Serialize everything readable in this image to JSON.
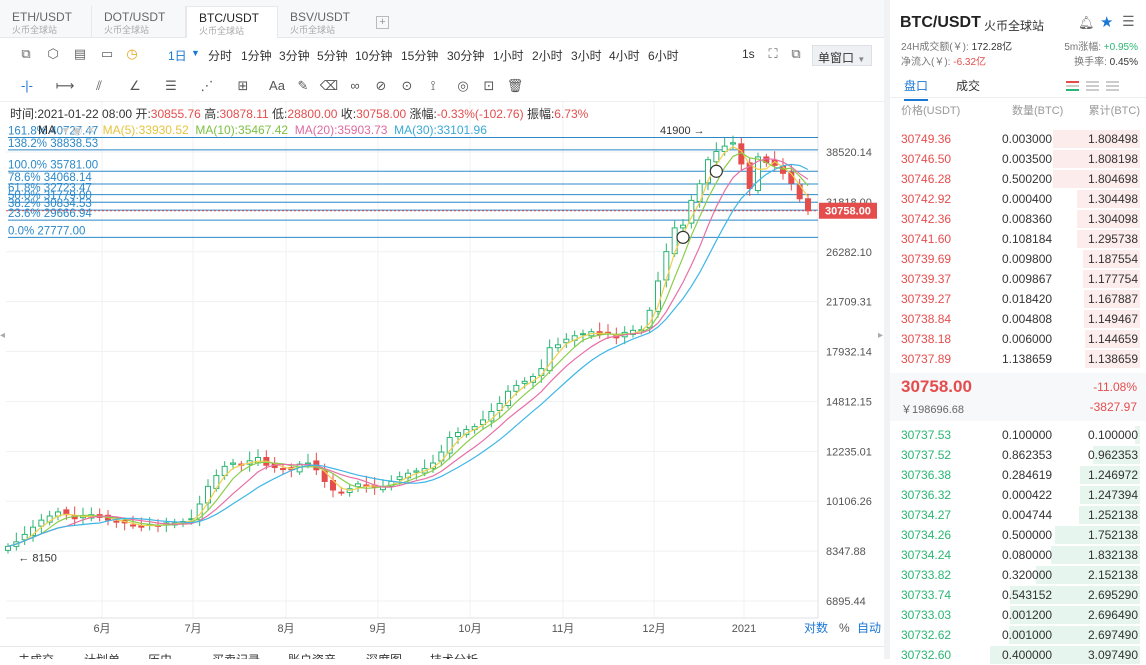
{
  "tabs": [
    {
      "symbol": "ETH/USDT",
      "exchange": "火币全球站"
    },
    {
      "symbol": "DOT/USDT",
      "exchange": "火币全球站"
    },
    {
      "symbol": "BTC/USDT",
      "exchange": "火币全球站"
    },
    {
      "symbol": "BSV/USDT",
      "exchange": "火币全球站"
    }
  ],
  "toolbar": {
    "period": "1日",
    "intervals": [
      "分时",
      "1分钟",
      "3分钟",
      "5分钟",
      "10分钟",
      "15分钟",
      "30分钟",
      "1小时",
      "2小时",
      "3小时",
      "4小时",
      "6小时"
    ],
    "speed": "1s",
    "window_mode": "单窗口"
  },
  "draw_tools": {
    "text_tool": "Aa"
  },
  "ohlc": {
    "time_label": "时间:",
    "time": "2021-01-22 08:00",
    "open_label": "开:",
    "open": "30855.76",
    "high_label": "高:",
    "high": "30878.11",
    "low_label": "低:",
    "low": "28800.00",
    "close_label": "收:",
    "close": "30758.00",
    "change_label": "涨幅:",
    "change": "-0.33%(-102.76)",
    "amp_label": "振幅:",
    "amplitude": "6.73%"
  },
  "ma": {
    "label": "MA",
    "ma5": "MA(5):33930.52",
    "ma10": "MA(10):35467.42",
    "ma20": "MA(20):35903.73",
    "ma30": "MA(30):33101.96"
  },
  "colors": {
    "accent": "#1a77d4",
    "up": "#2bb673",
    "down": "#e54d4d",
    "ma5": "#f2d04b",
    "ma10": "#8ccd4b",
    "ma20": "#e86fa4",
    "ma30": "#3fb6e6",
    "fib": "#2b88c8"
  },
  "chart_data": {
    "type": "candlestick",
    "title": "BTC/USDT",
    "scale": "log",
    "y_ticks": [
      38520.14,
      31818.0,
      26282.1,
      21709.31,
      17932.14,
      14812.15,
      12235.01,
      10106.26,
      8347.88,
      6895.44
    ],
    "x_ticks": [
      "6月",
      "7月",
      "8月",
      "9月",
      "10月",
      "11月",
      "12月",
      "2021"
    ],
    "current_price": "30758.00",
    "high_marker": "41900",
    "low_marker": "8150",
    "fib_levels": [
      {
        "label": "161.8% 40727.47",
        "value": 40727.47
      },
      {
        "label": "138.2% 38838.53",
        "value": 38838.53
      },
      {
        "label": "100.0% 35781.00",
        "value": 35781.0
      },
      {
        "label": "78.6% 34068.14",
        "value": 34068.14
      },
      {
        "label": "61.8% 32723.47",
        "value": 32723.47
      },
      {
        "label": "50.0% 31779.00",
        "value": 31779.0
      },
      {
        "label": "38.2% 30834.53",
        "value": 30834.53
      },
      {
        "label": "23.6% 29666.94",
        "value": 29666.94
      },
      {
        "label": "0.0% 27777.00",
        "value": 27777.0
      }
    ],
    "closes": [
      8500,
      8650,
      8900,
      9150,
      9400,
      9550,
      9700,
      9600,
      9450,
      9550,
      9600,
      9500,
      9400,
      9350,
      9300,
      9200,
      9150,
      9250,
      9200,
      9300,
      9300,
      9350,
      9450,
      10000,
      10700,
      11150,
      11550,
      11700,
      11600,
      11800,
      11950,
      11600,
      11500,
      11450,
      11400,
      11650,
      11700,
      11400,
      10900,
      10550,
      10450,
      10600,
      10800,
      10700,
      10650,
      10700,
      10900,
      11100,
      11250,
      11350,
      11450,
      11700,
      12200,
      12900,
      13150,
      13300,
      13450,
      13800,
      14250,
      14700,
      15400,
      15750,
      16000,
      16300,
      16800,
      18200,
      18400,
      18800,
      19050,
      19200,
      19350,
      19150,
      19200,
      18900,
      19300,
      19450,
      19500,
      21000,
      23500,
      26300,
      28800,
      29100,
      32000,
      34100,
      37400,
      38600,
      39400,
      39900,
      36800,
      33500,
      37800,
      37000,
      36600,
      35500,
      34200,
      32200,
      30758
    ],
    "axis_mode_log": "对数",
    "axis_mode_pct": "%",
    "axis_mode_auto": "自动"
  },
  "bottom_tabs": [
    "未成交",
    "计划单",
    "历史",
    "买卖记录",
    "账户资产",
    "深度图",
    "技术分析"
  ],
  "right": {
    "title": "BTC/USDT",
    "exchange": "火币全球站",
    "vol_label": "24H成交额(￥):",
    "vol": "172.28亿",
    "flow_label": "净流入(￥):",
    "flow": "-6.32亿",
    "rise_label": "5m涨幅:",
    "rise": "+0.95%",
    "turn_label": "换手率:",
    "turn": "0.45%",
    "tab_book": "盘口",
    "tab_trade": "成交",
    "head_price": "价格(USDT)",
    "head_amount": "数量(BTC)",
    "head_total": "累计(BTC)",
    "asks": [
      {
        "price": "30749.36",
        "amount": "0.003000",
        "total": "1.808498"
      },
      {
        "price": "30746.50",
        "amount": "0.003500",
        "total": "1.808198"
      },
      {
        "price": "30746.28",
        "amount": "0.500200",
        "total": "1.804698"
      },
      {
        "price": "30742.92",
        "amount": "0.000400",
        "total": "1.304498"
      },
      {
        "price": "30742.36",
        "amount": "0.008360",
        "total": "1.304098"
      },
      {
        "price": "30741.60",
        "amount": "0.108184",
        "total": "1.295738"
      },
      {
        "price": "30739.69",
        "amount": "0.009800",
        "total": "1.187554"
      },
      {
        "price": "30739.37",
        "amount": "0.009867",
        "total": "1.177754"
      },
      {
        "price": "30739.27",
        "amount": "0.018420",
        "total": "1.167887"
      },
      {
        "price": "30738.84",
        "amount": "0.004808",
        "total": "1.149467"
      },
      {
        "price": "30738.18",
        "amount": "0.006000",
        "total": "1.144659"
      },
      {
        "price": "30737.89",
        "amount": "1.138659",
        "total": "1.138659"
      }
    ],
    "mid_price": "30758.00",
    "mid_cny": "￥198696.68",
    "mid_pct": "-11.08%",
    "mid_chg": "-3827.97",
    "bids": [
      {
        "price": "30737.53",
        "amount": "0.100000",
        "total": "0.100000"
      },
      {
        "price": "30737.52",
        "amount": "0.862353",
        "total": "0.962353"
      },
      {
        "price": "30736.38",
        "amount": "0.284619",
        "total": "1.246972"
      },
      {
        "price": "30736.32",
        "amount": "0.000422",
        "total": "1.247394"
      },
      {
        "price": "30734.27",
        "amount": "0.004744",
        "total": "1.252138"
      },
      {
        "price": "30734.26",
        "amount": "0.500000",
        "total": "1.752138"
      },
      {
        "price": "30734.24",
        "amount": "0.080000",
        "total": "1.832138"
      },
      {
        "price": "30733.82",
        "amount": "0.320000",
        "total": "2.152138"
      },
      {
        "price": "30733.74",
        "amount": "0.543152",
        "total": "2.695290"
      },
      {
        "price": "30733.03",
        "amount": "0.001200",
        "total": "2.696490"
      },
      {
        "price": "30732.62",
        "amount": "0.001000",
        "total": "2.697490"
      },
      {
        "price": "30732.60",
        "amount": "0.400000",
        "total": "3.097490"
      }
    ]
  }
}
